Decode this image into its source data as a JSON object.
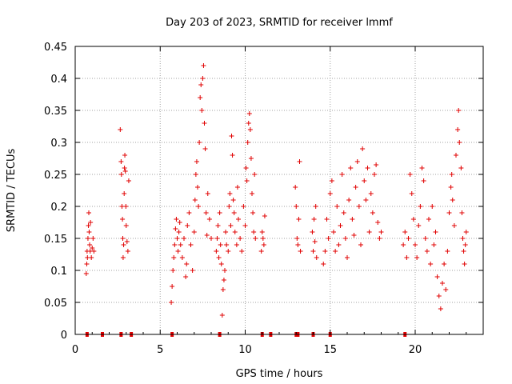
{
  "chart_data": {
    "type": "scatter",
    "title": "Day 203 of 2023, SRMTID for receiver lmmf",
    "xlabel": "GPS time / hours",
    "ylabel": "SRMTID / TECUs",
    "xlim": [
      0,
      24
    ],
    "ylim": [
      0,
      0.45
    ],
    "grid": true,
    "marker": "+",
    "color": "#e00000",
    "x_ticks": [
      0,
      5,
      10,
      15,
      20
    ],
    "x_tick_labels": [
      "0",
      "5",
      "10",
      "15",
      "20"
    ],
    "y_ticks": [
      0,
      0.05,
      0.1,
      0.15,
      0.2,
      0.25,
      0.3,
      0.35,
      0.4,
      0.45
    ],
    "y_tick_labels": [
      "0",
      "0.05",
      "0.1",
      "0.15",
      "0.2",
      "0.25",
      "0.3",
      "0.35",
      "0.4",
      "0.45"
    ],
    "series": [
      {
        "name": "SRMTID",
        "points": [
          [
            0.65,
            0.095
          ],
          [
            0.68,
            0.11
          ],
          [
            0.7,
            0.13
          ],
          [
            0.72,
            0.12
          ],
          [
            0.75,
            0.15
          ],
          [
            0.78,
            0.17
          ],
          [
            0.8,
            0.19
          ],
          [
            0.82,
            0.16
          ],
          [
            0.85,
            0.14
          ],
          [
            0.88,
            0.13
          ],
          [
            0.9,
            0.175
          ],
          [
            0.95,
            0.12
          ],
          [
            1.0,
            0.135
          ],
          [
            1.05,
            0.15
          ],
          [
            1.1,
            0.13
          ],
          [
            2.65,
            0.32
          ],
          [
            2.7,
            0.27
          ],
          [
            2.72,
            0.25
          ],
          [
            2.75,
            0.2
          ],
          [
            2.78,
            0.18
          ],
          [
            2.8,
            0.15
          ],
          [
            2.82,
            0.12
          ],
          [
            2.85,
            0.14
          ],
          [
            2.88,
            0.22
          ],
          [
            2.9,
            0.26
          ],
          [
            2.92,
            0.28
          ],
          [
            2.95,
            0.255
          ],
          [
            2.98,
            0.2
          ],
          [
            3.0,
            0.17
          ],
          [
            3.05,
            0.145
          ],
          [
            3.1,
            0.13
          ],
          [
            3.15,
            0.24
          ],
          [
            5.65,
            0.05
          ],
          [
            5.7,
            0.075
          ],
          [
            5.75,
            0.1
          ],
          [
            5.8,
            0.12
          ],
          [
            5.85,
            0.14
          ],
          [
            5.9,
            0.165
          ],
          [
            5.95,
            0.18
          ],
          [
            6.0,
            0.15
          ],
          [
            6.05,
            0.13
          ],
          [
            6.1,
            0.16
          ],
          [
            6.15,
            0.175
          ],
          [
            6.2,
            0.14
          ],
          [
            6.3,
            0.12
          ],
          [
            6.4,
            0.15
          ],
          [
            6.5,
            0.09
          ],
          [
            6.55,
            0.11
          ],
          [
            6.6,
            0.17
          ],
          [
            6.7,
            0.19
          ],
          [
            6.8,
            0.14
          ],
          [
            6.9,
            0.1
          ],
          [
            7.0,
            0.16
          ],
          [
            7.05,
            0.21
          ],
          [
            7.1,
            0.25
          ],
          [
            7.15,
            0.27
          ],
          [
            7.2,
            0.23
          ],
          [
            7.25,
            0.2
          ],
          [
            7.3,
            0.3
          ],
          [
            7.35,
            0.37
          ],
          [
            7.4,
            0.39
          ],
          [
            7.45,
            0.35
          ],
          [
            7.5,
            0.4
          ],
          [
            7.55,
            0.42
          ],
          [
            7.6,
            0.33
          ],
          [
            7.65,
            0.29
          ],
          [
            7.7,
            0.19
          ],
          [
            7.75,
            0.155
          ],
          [
            7.8,
            0.22
          ],
          [
            7.9,
            0.18
          ],
          [
            8.0,
            0.15
          ],
          [
            8.3,
            0.13
          ],
          [
            8.35,
            0.15
          ],
          [
            8.4,
            0.17
          ],
          [
            8.45,
            0.12
          ],
          [
            8.5,
            0.19
          ],
          [
            8.55,
            0.14
          ],
          [
            8.6,
            0.11
          ],
          [
            8.65,
            0.03
          ],
          [
            8.7,
            0.07
          ],
          [
            8.75,
            0.085
          ],
          [
            8.8,
            0.1
          ],
          [
            8.85,
            0.16
          ],
          [
            8.9,
            0.14
          ],
          [
            9.0,
            0.13
          ],
          [
            9.05,
            0.2
          ],
          [
            9.1,
            0.22
          ],
          [
            9.15,
            0.17
          ],
          [
            9.2,
            0.31
          ],
          [
            9.25,
            0.28
          ],
          [
            9.3,
            0.21
          ],
          [
            9.35,
            0.19
          ],
          [
            9.4,
            0.16
          ],
          [
            9.5,
            0.14
          ],
          [
            9.55,
            0.23
          ],
          [
            9.6,
            0.18
          ],
          [
            9.7,
            0.15
          ],
          [
            9.8,
            0.13
          ],
          [
            9.9,
            0.2
          ],
          [
            10.0,
            0.17
          ],
          [
            10.05,
            0.26
          ],
          [
            10.1,
            0.24
          ],
          [
            10.15,
            0.3
          ],
          [
            10.2,
            0.33
          ],
          [
            10.25,
            0.345
          ],
          [
            10.3,
            0.32
          ],
          [
            10.35,
            0.275
          ],
          [
            10.4,
            0.22
          ],
          [
            10.45,
            0.19
          ],
          [
            10.5,
            0.16
          ],
          [
            10.55,
            0.25
          ],
          [
            10.6,
            0.15
          ],
          [
            10.95,
            0.13
          ],
          [
            11.0,
            0.16
          ],
          [
            11.05,
            0.15
          ],
          [
            11.1,
            0.14
          ],
          [
            11.15,
            0.185
          ],
          [
            12.95,
            0.23
          ],
          [
            13.0,
            0.2
          ],
          [
            13.05,
            0.15
          ],
          [
            13.1,
            0.14
          ],
          [
            13.15,
            0.18
          ],
          [
            13.2,
            0.27
          ],
          [
            13.25,
            0.13
          ],
          [
            13.95,
            0.16
          ],
          [
            14.0,
            0.13
          ],
          [
            14.05,
            0.18
          ],
          [
            14.1,
            0.145
          ],
          [
            14.15,
            0.2
          ],
          [
            14.2,
            0.12
          ],
          [
            14.6,
            0.11
          ],
          [
            14.7,
            0.13
          ],
          [
            14.8,
            0.18
          ],
          [
            14.9,
            0.15
          ],
          [
            15.0,
            0.22
          ],
          [
            15.1,
            0.24
          ],
          [
            15.2,
            0.16
          ],
          [
            15.3,
            0.13
          ],
          [
            15.4,
            0.2
          ],
          [
            15.5,
            0.14
          ],
          [
            15.6,
            0.17
          ],
          [
            15.7,
            0.25
          ],
          [
            15.8,
            0.19
          ],
          [
            15.9,
            0.15
          ],
          [
            16.0,
            0.12
          ],
          [
            16.1,
            0.21
          ],
          [
            16.2,
            0.26
          ],
          [
            16.3,
            0.18
          ],
          [
            16.4,
            0.155
          ],
          [
            16.5,
            0.23
          ],
          [
            16.6,
            0.27
          ],
          [
            16.7,
            0.2
          ],
          [
            16.8,
            0.14
          ],
          [
            16.9,
            0.29
          ],
          [
            17.0,
            0.24
          ],
          [
            17.1,
            0.21
          ],
          [
            17.2,
            0.26
          ],
          [
            17.3,
            0.16
          ],
          [
            17.4,
            0.22
          ],
          [
            17.5,
            0.19
          ],
          [
            17.6,
            0.25
          ],
          [
            17.7,
            0.265
          ],
          [
            17.8,
            0.175
          ],
          [
            17.9,
            0.15
          ],
          [
            18.0,
            0.16
          ],
          [
            19.3,
            0.14
          ],
          [
            19.4,
            0.16
          ],
          [
            19.5,
            0.12
          ],
          [
            19.6,
            0.15
          ],
          [
            19.7,
            0.25
          ],
          [
            19.8,
            0.22
          ],
          [
            19.9,
            0.18
          ],
          [
            20.0,
            0.14
          ],
          [
            20.1,
            0.12
          ],
          [
            20.2,
            0.17
          ],
          [
            20.3,
            0.2
          ],
          [
            20.4,
            0.26
          ],
          [
            20.5,
            0.24
          ],
          [
            20.6,
            0.15
          ],
          [
            20.7,
            0.13
          ],
          [
            20.8,
            0.18
          ],
          [
            20.9,
            0.11
          ],
          [
            21.0,
            0.2
          ],
          [
            21.1,
            0.14
          ],
          [
            21.2,
            0.16
          ],
          [
            21.3,
            0.09
          ],
          [
            21.4,
            0.06
          ],
          [
            21.5,
            0.04
          ],
          [
            21.6,
            0.08
          ],
          [
            21.7,
            0.11
          ],
          [
            21.8,
            0.07
          ],
          [
            21.9,
            0.13
          ],
          [
            22.0,
            0.19
          ],
          [
            22.1,
            0.23
          ],
          [
            22.15,
            0.25
          ],
          [
            22.2,
            0.21
          ],
          [
            22.3,
            0.17
          ],
          [
            22.4,
            0.28
          ],
          [
            22.5,
            0.32
          ],
          [
            22.55,
            0.35
          ],
          [
            22.6,
            0.3
          ],
          [
            22.7,
            0.26
          ],
          [
            22.75,
            0.19
          ],
          [
            22.8,
            0.15
          ],
          [
            22.85,
            0.13
          ],
          [
            22.9,
            0.11
          ],
          [
            22.95,
            0.14
          ],
          [
            23.0,
            0.16
          ]
        ]
      }
    ],
    "coverage_marks": [
      0.7,
      1.6,
      2.7,
      3.3,
      5.7,
      8.5,
      11.0,
      11.5,
      13.0,
      13.1,
      14.0,
      15.0,
      19.4
    ]
  }
}
